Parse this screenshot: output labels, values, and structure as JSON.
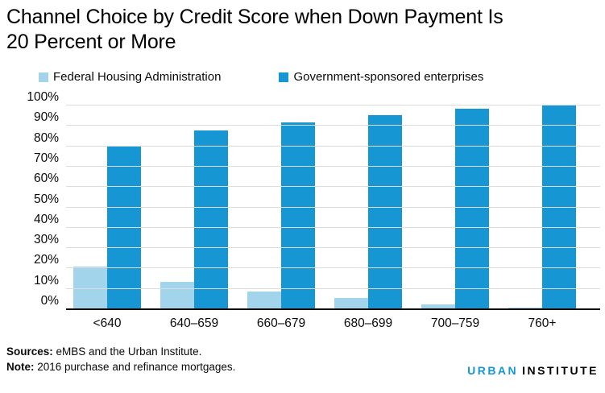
{
  "title": {
    "line1": "Channel Choice by Credit Score when Down Payment Is",
    "line2": "20 Percent or More"
  },
  "legend": [
    {
      "label": "Federal Housing Administration",
      "color": "#a2d4ec"
    },
    {
      "label": "Government-sponsored enterprises",
      "color": "#1696d2"
    }
  ],
  "chart_data": {
    "type": "bar",
    "categories": [
      "<640",
      "640–659",
      "660–679",
      "680–699",
      "700–759",
      "760+"
    ],
    "series": [
      {
        "name": "Federal Housing Administration",
        "color": "#a2d4ec",
        "values": [
          20.5,
          13,
          8.5,
          5,
          2,
          0.5
        ]
      },
      {
        "name": "Government-sponsored enterprises",
        "color": "#1696d2",
        "values": [
          79.5,
          87.5,
          91.5,
          95,
          98,
          99.5
        ]
      }
    ],
    "title": "Channel Choice by Credit Score when Down Payment Is 20 Percent or More",
    "xlabel": "",
    "ylabel": "",
    "ylim": [
      0,
      100
    ],
    "ytick_step": 10,
    "ytick_labels": [
      "0%",
      "10%",
      "20%",
      "30%",
      "40%",
      "50%",
      "60%",
      "70%",
      "80%",
      "90%",
      "100%"
    ],
    "grid": true,
    "legend_position": "top"
  },
  "notes": {
    "sources_label": "Sources:",
    "sources_text": " eMBS and the Urban Institute.",
    "note_label": "Note:",
    "note_text": " 2016 purchase and refinance mortgages."
  },
  "logo": {
    "part1": "URBAN",
    "part2": "INSTITUTE"
  },
  "colors": {
    "fha": "#a2d4ec",
    "gse": "#1696d2",
    "gridline": "#dcdcdc",
    "axis": "#000000",
    "brand": "#1696d2"
  }
}
